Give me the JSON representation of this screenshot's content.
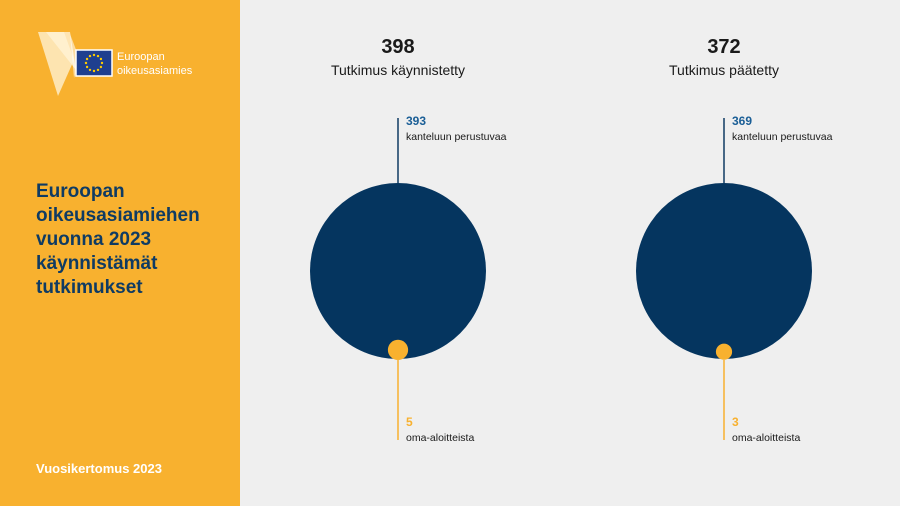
{
  "brand": {
    "line1": "Euroopan",
    "line2": "oikeusasiamies"
  },
  "sidebar": {
    "title_lines": [
      "Euroopan",
      "oikeusasiamiehen",
      "vuonna 2023",
      "käynnistämät",
      "tutkimukset"
    ],
    "footer": "Vuosikertomus 2023"
  },
  "colors": {
    "sidebar_bg": "#f8b12f",
    "page_bg": "#efefef",
    "navy": "#0f3b63",
    "circle_navy": "#05355f",
    "accent_yellow": "#f8b12f",
    "label_blue": "#1a5e96",
    "text_dark": "#1a1a1a"
  },
  "chart_data": [
    {
      "type": "pie",
      "total": 398,
      "title": "Tutkimus käynnistetty",
      "slices": [
        {
          "value": 393,
          "label": "kanteluun perustuvaa"
        },
        {
          "value": 5,
          "label": "oma-aloitteista"
        }
      ]
    },
    {
      "type": "pie",
      "total": 372,
      "title": "Tutkimus päätetty",
      "slices": [
        {
          "value": 369,
          "label": "kanteluun perustuvaa"
        },
        {
          "value": 3,
          "label": "oma-aloitteista"
        }
      ]
    }
  ]
}
